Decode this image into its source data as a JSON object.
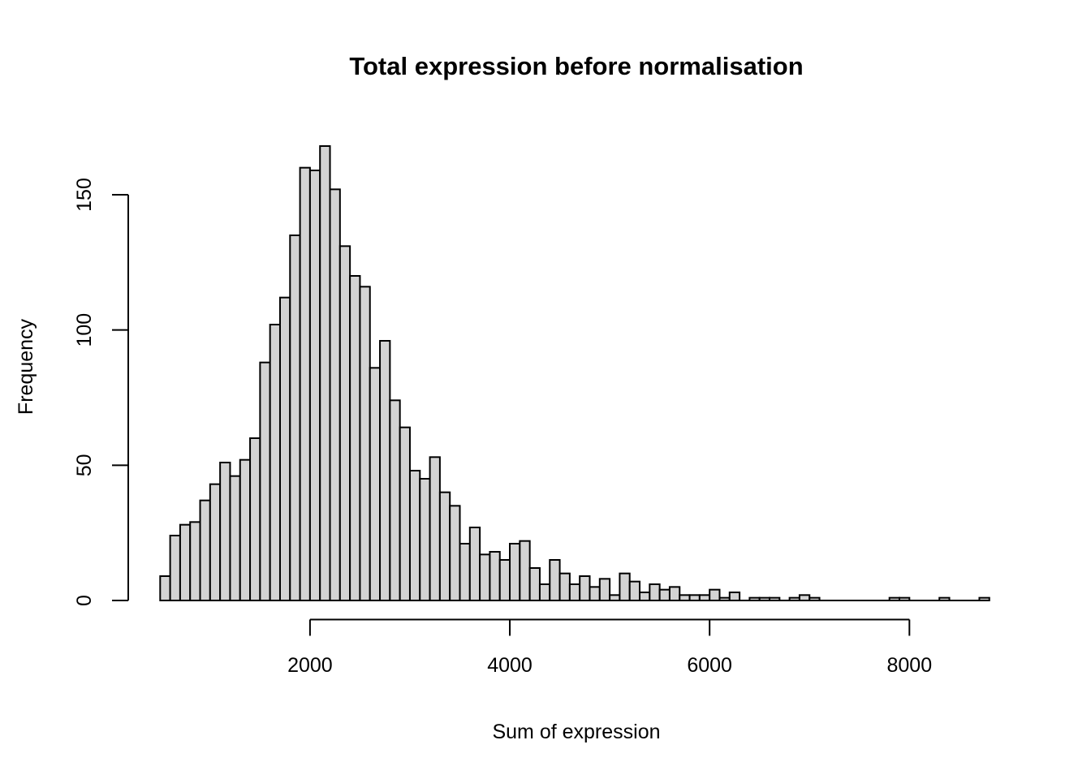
{
  "title": "Total expression before normalisation",
  "x_axis": {
    "label": "Sum of expression",
    "tick_labels": [
      "2000",
      "4000",
      "6000",
      "8000"
    ]
  },
  "y_axis": {
    "label": "Frequency",
    "tick_labels": [
      "0",
      "50",
      "100",
      "150"
    ]
  },
  "colors": {
    "background": "#ffffff",
    "bar_fill": "#d3d3d3",
    "bar_stroke": "#000000",
    "axis": "#000000",
    "text": "#000000"
  },
  "chart_data": {
    "type": "bar",
    "subtype": "histogram",
    "title": "Total expression before normalisation",
    "xlabel": "Sum of expression",
    "ylabel": "Frequency",
    "bin_start": 500,
    "bin_width": 100,
    "counts": [
      9,
      24,
      28,
      29,
      37,
      43,
      51,
      46,
      52,
      60,
      88,
      102,
      112,
      135,
      160,
      159,
      168,
      152,
      131,
      120,
      116,
      86,
      96,
      74,
      64,
      48,
      45,
      53,
      40,
      35,
      21,
      27,
      17,
      18,
      15,
      21,
      22,
      12,
      6,
      15,
      10,
      6,
      9,
      5,
      8,
      2,
      10,
      7,
      3,
      6,
      4,
      5,
      2,
      2,
      2,
      4,
      1,
      3,
      0,
      1,
      1,
      1,
      0,
      1,
      2,
      1,
      0,
      0,
      0,
      0,
      0,
      0,
      0,
      1,
      1,
      0,
      0,
      0,
      1,
      0,
      0,
      0,
      1
    ],
    "x_ticks": [
      2000,
      4000,
      6000,
      8000
    ],
    "y_ticks": [
      0,
      50,
      100,
      150
    ],
    "xlim": [
      500,
      8800
    ],
    "ylim": [
      0,
      150
    ],
    "grid": false,
    "legend": "none"
  }
}
